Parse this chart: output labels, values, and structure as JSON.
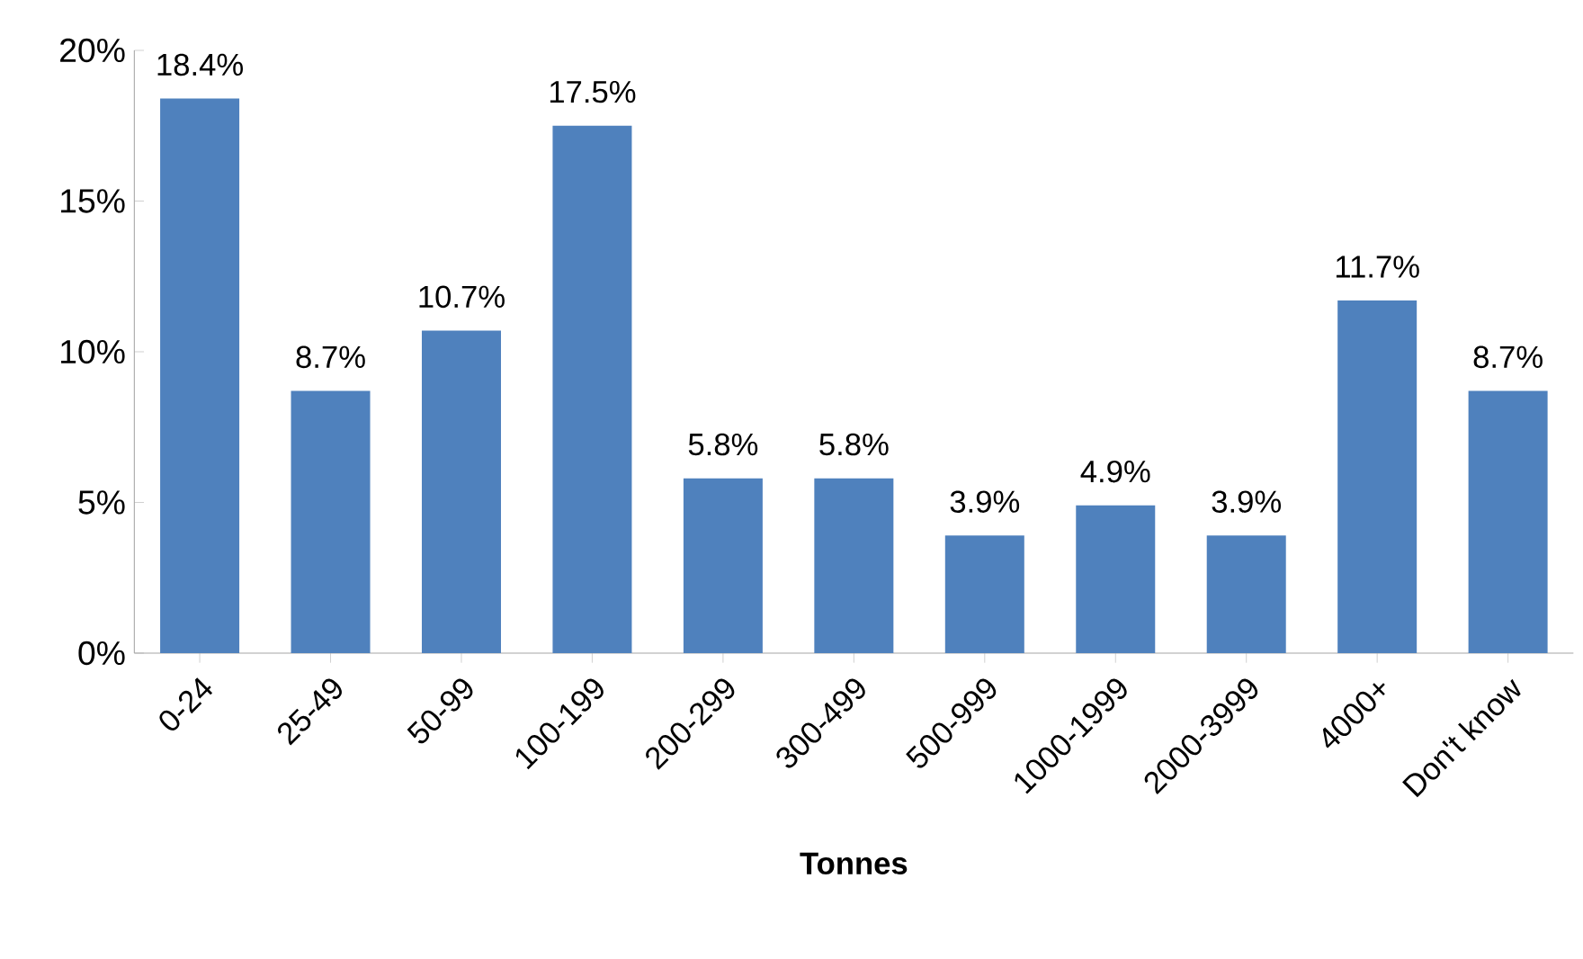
{
  "chart_data": {
    "type": "bar",
    "xlabel": "Tonnes",
    "categories": [
      "0-24",
      "25-49",
      "50-99",
      "100-199",
      "200-299",
      "300-499",
      "500-999",
      "1000-1999",
      "2000-3999",
      "4000+",
      "Don't know"
    ],
    "values": [
      18.4,
      8.7,
      10.7,
      17.5,
      5.8,
      5.8,
      3.9,
      4.9,
      3.9,
      11.7,
      8.7
    ],
    "value_labels": [
      "18.4%",
      "8.7%",
      "10.7%",
      "17.5%",
      "5.8%",
      "5.8%",
      "3.9%",
      "4.9%",
      "3.9%",
      "11.7%",
      "8.7%"
    ],
    "color": "#4f81bd",
    "ylim": [
      0,
      20
    ],
    "yticks": [
      {
        "value": 0,
        "label": "0%"
      },
      {
        "value": 5,
        "label": "5%"
      },
      {
        "value": 10,
        "label": "10%"
      },
      {
        "value": 15,
        "label": "15%"
      },
      {
        "value": 20,
        "label": "20%"
      }
    ],
    "grid": false
  }
}
